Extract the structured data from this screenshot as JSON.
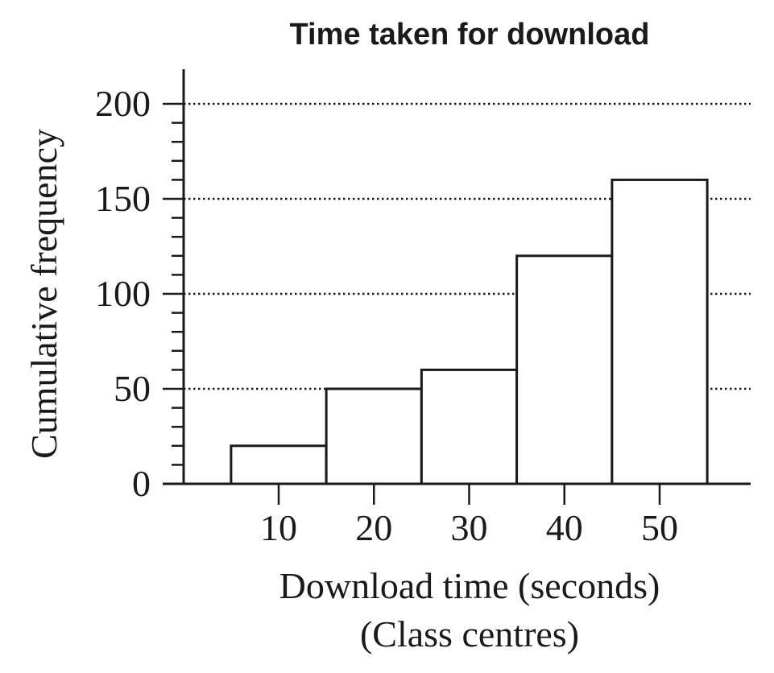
{
  "chart_data": {
    "type": "bar",
    "title": "Time taken for download",
    "xlabel": "Download time (seconds)",
    "xlabel_sub": "(Class centres)",
    "ylabel": "Cumulative frequency",
    "categories": [
      "10",
      "20",
      "30",
      "40",
      "50"
    ],
    "x": [
      10,
      20,
      30,
      40,
      50
    ],
    "values": [
      20,
      50,
      60,
      120,
      160
    ],
    "bin_width": 10,
    "ylim": [
      0,
      200
    ],
    "y_major_ticks": [
      0,
      50,
      100,
      150,
      200
    ],
    "y_minor_step": 10,
    "grid": true,
    "grid_style": "dotted horizontal at major ticks",
    "legend": "none"
  }
}
